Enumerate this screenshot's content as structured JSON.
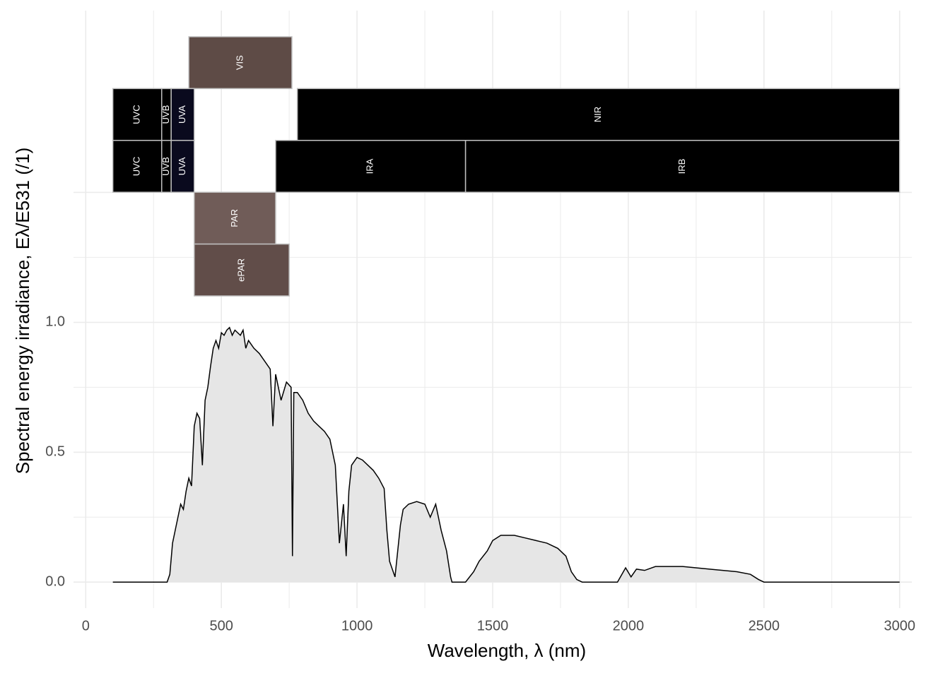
{
  "chart_data": {
    "type": "area",
    "xlabel": "Wavelength, λ (nm)",
    "ylabel": "Spectral energy irradiance, Eλ/E531 (/1)",
    "xlim": [
      -45,
      3045
    ],
    "ylim": [
      -0.1,
      2.2
    ],
    "xticks": [
      0,
      500,
      1000,
      1500,
      2000,
      2500,
      3000
    ],
    "yticks": [
      {
        "value": 0,
        "label": "0.0"
      },
      0.5,
      {
        "value": 1,
        "label": "1.0"
      }
    ],
    "x_gridlines": [
      0,
      250,
      500,
      750,
      1000,
      1250,
      1500,
      1750,
      2000,
      2250,
      2500,
      2750,
      3000
    ],
    "y_gridlines": [
      0,
      0.25,
      0.5,
      0.75,
      1,
      1.25,
      1.5
    ],
    "grid": true,
    "line_color": "#000000",
    "fill_color": "#e6e6e6",
    "x": [
      100,
      300,
      310,
      320,
      330,
      340,
      350,
      360,
      370,
      380,
      390,
      400,
      410,
      420,
      430,
      440,
      450,
      460,
      470,
      480,
      490,
      500,
      510,
      520,
      530,
      540,
      550,
      560,
      570,
      580,
      590,
      600,
      620,
      640,
      660,
      680,
      690,
      700,
      720,
      740,
      757,
      762,
      767,
      780,
      800,
      820,
      840,
      860,
      880,
      900,
      920,
      935,
      950,
      960,
      970,
      980,
      1000,
      1020,
      1040,
      1060,
      1080,
      1100,
      1110,
      1120,
      1130,
      1140,
      1150,
      1160,
      1170,
      1190,
      1220,
      1250,
      1270,
      1290,
      1310,
      1330,
      1345,
      1350,
      1400,
      1430,
      1450,
      1480,
      1500,
      1530,
      1580,
      1620,
      1660,
      1700,
      1740,
      1770,
      1790,
      1810,
      1830,
      1960,
      1990,
      2010,
      2030,
      2060,
      2100,
      2200,
      2300,
      2400,
      2450,
      2480,
      2500,
      3000
    ],
    "values": [
      0,
      0,
      0.03,
      0.15,
      0.2,
      0.25,
      0.3,
      0.28,
      0.35,
      0.4,
      0.37,
      0.6,
      0.65,
      0.63,
      0.45,
      0.7,
      0.75,
      0.83,
      0.9,
      0.93,
      0.9,
      0.96,
      0.95,
      0.97,
      0.98,
      0.95,
      0.97,
      0.96,
      0.95,
      0.97,
      0.9,
      0.93,
      0.9,
      0.88,
      0.85,
      0.82,
      0.6,
      0.8,
      0.7,
      0.77,
      0.75,
      0.1,
      0.73,
      0.73,
      0.7,
      0.65,
      0.62,
      0.6,
      0.58,
      0.55,
      0.45,
      0.15,
      0.3,
      0.1,
      0.35,
      0.45,
      0.48,
      0.47,
      0.45,
      0.43,
      0.4,
      0.36,
      0.2,
      0.08,
      0.05,
      0.02,
      0.12,
      0.22,
      0.28,
      0.3,
      0.31,
      0.3,
      0.25,
      0.3,
      0.2,
      0.12,
      0.02,
      0,
      0,
      0.04,
      0.08,
      0.12,
      0.16,
      0.18,
      0.18,
      0.17,
      0.16,
      0.15,
      0.13,
      0.1,
      0.04,
      0.01,
      0,
      0,
      0.055,
      0.02,
      0.05,
      0.045,
      0.06,
      0.06,
      0.05,
      0.04,
      0.03,
      0.01,
      0,
      0
    ],
    "band_rows": [
      [
        {
          "label": "VIS",
          "xmin": 380,
          "xmax": 760,
          "color": "#5e4b46"
        }
      ],
      [
        {
          "label": "UVC",
          "xmin": 100,
          "xmax": 280,
          "color": "#000000"
        },
        {
          "label": "UVB",
          "xmin": 280,
          "xmax": 315,
          "color": "#000000"
        },
        {
          "label": "UVA",
          "xmin": 315,
          "xmax": 400,
          "color": "#0a0a1e"
        },
        {
          "label": "NIR",
          "xmin": 780,
          "xmax": 3000,
          "color": "#000000"
        }
      ],
      [
        {
          "label": "UVC",
          "xmin": 100,
          "xmax": 280,
          "color": "#000000"
        },
        {
          "label": "UVB",
          "xmin": 280,
          "xmax": 315,
          "color": "#000000"
        },
        {
          "label": "UVA",
          "xmin": 315,
          "xmax": 400,
          "color": "#0a0a1e"
        },
        {
          "label": "IRA",
          "xmin": 700,
          "xmax": 1400,
          "color": "#000000"
        },
        {
          "label": "IRB",
          "xmin": 1400,
          "xmax": 3000,
          "color": "#000000"
        }
      ],
      [
        {
          "label": "PAR",
          "xmin": 400,
          "xmax": 700,
          "color": "#705c58"
        }
      ],
      [
        {
          "label": "ePAR",
          "xmin": 400,
          "xmax": 750,
          "color": "#614d49"
        }
      ]
    ]
  }
}
